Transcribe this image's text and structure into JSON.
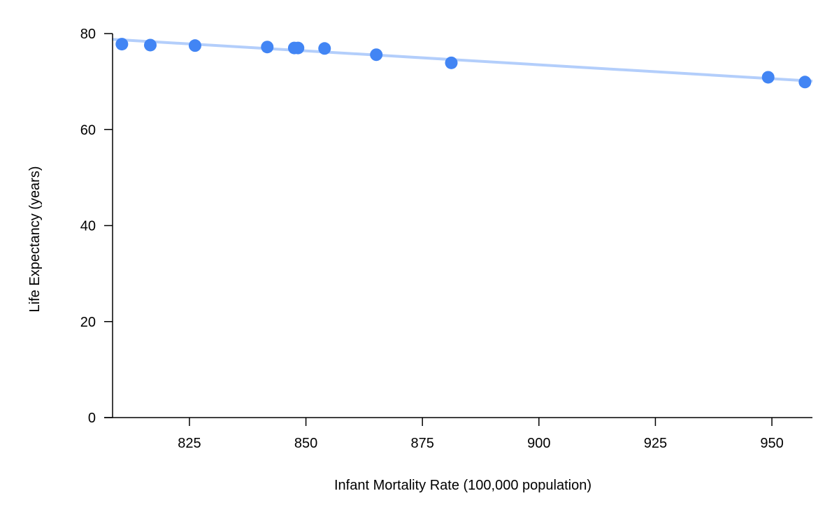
{
  "chart_data": {
    "type": "scatter",
    "title": "",
    "xlabel": "Infant Mortality Rate (100,000 population)",
    "ylabel": "Life Expectancy (years)",
    "xlim": [
      808.5,
      958.7
    ],
    "ylim": [
      0,
      80
    ],
    "x_ticks": [
      825,
      850,
      875,
      900,
      925,
      950
    ],
    "y_ticks": [
      0,
      20,
      40,
      60,
      80
    ],
    "grid": false,
    "legend": "none",
    "colors": {
      "points": "#4285f4",
      "trendline": "#b3cefb",
      "axis": "#000000"
    },
    "points": [
      {
        "x": 810.5,
        "y": 77.8
      },
      {
        "x": 816.6,
        "y": 77.6
      },
      {
        "x": 826.2,
        "y": 77.5
      },
      {
        "x": 841.7,
        "y": 77.2
      },
      {
        "x": 847.5,
        "y": 77.0
      },
      {
        "x": 848.3,
        "y": 77.0
      },
      {
        "x": 854.0,
        "y": 76.9
      },
      {
        "x": 865.1,
        "y": 75.6
      },
      {
        "x": 881.2,
        "y": 73.9
      },
      {
        "x": 949.2,
        "y": 70.9
      },
      {
        "x": 957.1,
        "y": 69.9
      }
    ],
    "trendline": {
      "x": [
        808.5,
        958.7
      ],
      "y": [
        78.8,
        70.1
      ]
    }
  }
}
